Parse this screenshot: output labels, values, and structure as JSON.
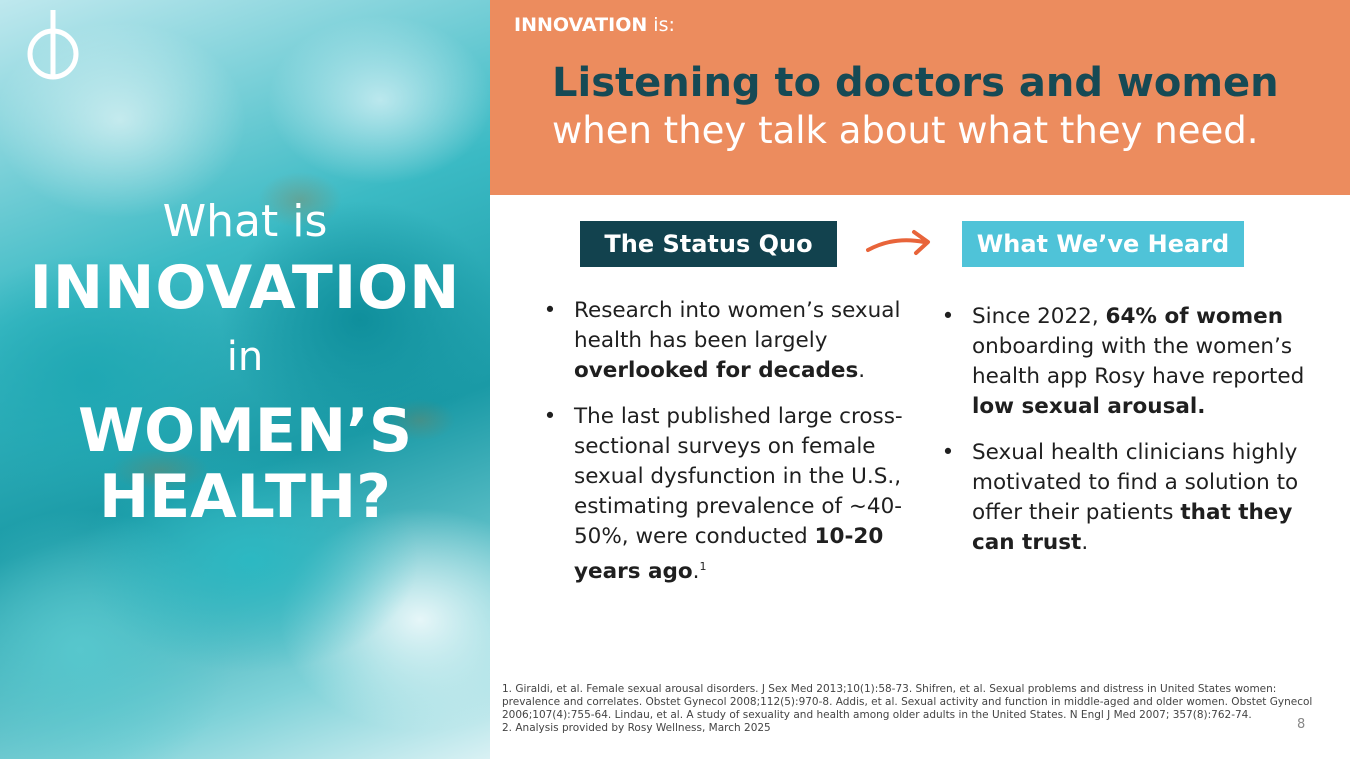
{
  "left_panel": {
    "line1": "What is",
    "line2": "INNOVATION",
    "line3": "in",
    "line4": "WOMEN’S",
    "line5": "HEALTH?"
  },
  "header": {
    "kicker_bold": "INNOVATION",
    "kicker_rest": " is:",
    "headline_line1": "Listening to doctors and women",
    "headline_line2": "when they talk about what they need."
  },
  "labels": {
    "left": "The Status Quo",
    "right": "What We’ve Heard"
  },
  "status_quo": [
    {
      "pre": "Research into women’s sexual health has been largely ",
      "bold": "overlooked for decades",
      "post": ".",
      "sup": ""
    },
    {
      "pre": "The last published large cross-sectional surveys on female sexual dysfunction in the U.S., estimating prevalence of ~40-50%, were conducted ",
      "bold": "10-20 years ago",
      "post": ".",
      "sup": "1"
    }
  ],
  "heard": [
    {
      "pre": "Since 2022, ",
      "bold": "64% of women",
      "mid": " onboarding with the women’s health app Rosy have reported ",
      "bold2": "low sexual arousal.",
      "post": ""
    },
    {
      "pre": "Sexual health clinicians highly motivated to find a solution to offer their patients ",
      "bold": "that they can trust",
      "mid": "",
      "bold2": "",
      "post": "."
    }
  ],
  "footnotes": {
    "note1": "1. Giraldi, et al. Female sexual arousal disorders. J Sex Med 2013;10(1):58-73. Shifren, et al. Sexual problems and distress in United States women: prevalence and correlates. Obstet Gynecol 2008;112(5):970-8. Addis, et al. Sexual activity and function in middle-aged and older women. Obstet Gynecol 2006;107(4):755-64. Lindau, et al. A study of sexuality and health among older adults in the United States. N Engl J Med 2007; 357(8):762-74.",
    "note2": "2. Analysis provided by Rosy Wellness, March 2025"
  },
  "page_number": "8",
  "bullet_glyph": "•",
  "colors": {
    "band": "#ec8c5e",
    "headline_dark": "#164a55",
    "label_left": "#12424e",
    "label_right": "#4fc3d8",
    "arrow": "#e8643a"
  },
  "icons": {
    "logo": "brand-logo-icon",
    "arrow": "arrow-right-icon"
  }
}
